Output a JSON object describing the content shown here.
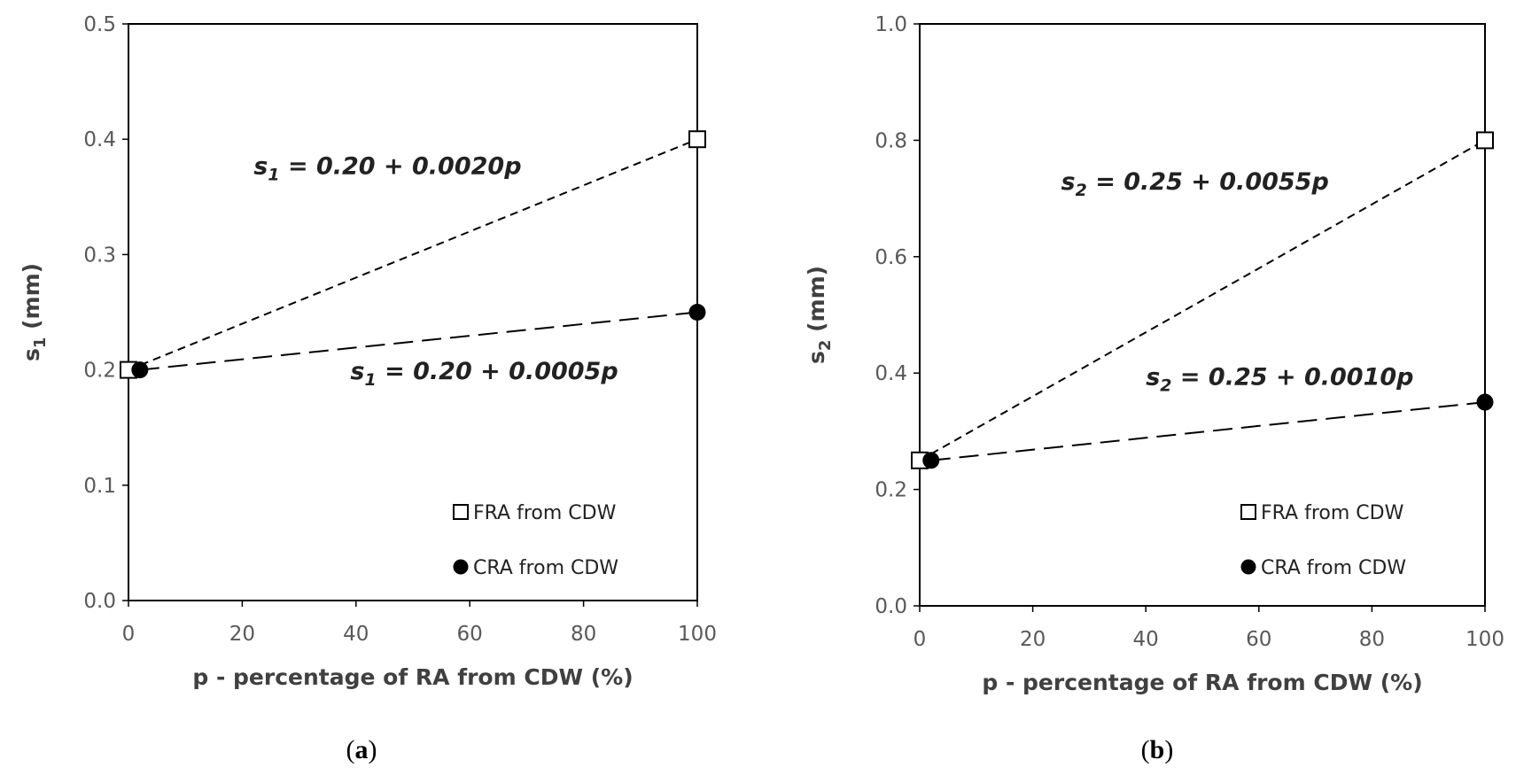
{
  "chart_data": [
    {
      "type": "line",
      "panel": "a",
      "caption_open": "(",
      "caption_letter": "a",
      "caption_close": ")",
      "xlabel": "p - percentage of RA from CDW (%)",
      "ylabel_main": "s",
      "ylabel_sub": "1",
      "ylabel_unit": " (mm)",
      "xlim": [
        0,
        100
      ],
      "ylim": [
        0.0,
        0.5
      ],
      "xticks": [
        0,
        20,
        40,
        60,
        80,
        100
      ],
      "xtick_labels": [
        "0",
        "20",
        "40",
        "60",
        "80",
        "100"
      ],
      "yticks": [
        0.0,
        0.1,
        0.2,
        0.3,
        0.4,
        0.5
      ],
      "ytick_labels": [
        "0.0",
        "0.1",
        "0.2",
        "0.3",
        "0.4",
        "0.5"
      ],
      "series": [
        {
          "name": "FRA from CDW",
          "marker": "open-square",
          "line": "short-dash",
          "x": [
            0,
            100
          ],
          "y": [
            0.2,
            0.4
          ],
          "equation": {
            "lhs": "s",
            "sub": "1",
            "rhs": " =  0.20 + 0.0020p",
            "at": [
              22,
              0.37
            ]
          }
        },
        {
          "name": "CRA from CDW",
          "marker": "filled-circle",
          "line": "long-dash",
          "x": [
            2,
            100
          ],
          "y": [
            0.2,
            0.25
          ],
          "equation": {
            "lhs": "s",
            "sub": "1",
            "rhs": " = 0.20 + 0.0005p",
            "at": [
              39,
              0.192
            ]
          }
        }
      ],
      "legend": {
        "position": "bottom-right"
      }
    },
    {
      "type": "line",
      "panel": "b",
      "caption_open": "(",
      "caption_letter": "b",
      "caption_close": ")",
      "xlabel": "p - percentage of RA from CDW (%)",
      "ylabel_main": "s",
      "ylabel_sub": "2",
      "ylabel_unit": " (mm)",
      "xlim": [
        0,
        100
      ],
      "ylim": [
        0.0,
        1.0
      ],
      "xticks": [
        0,
        20,
        40,
        60,
        80,
        100
      ],
      "xtick_labels": [
        "0",
        "20",
        "40",
        "60",
        "80",
        "100"
      ],
      "yticks": [
        0.0,
        0.2,
        0.4,
        0.6,
        0.8,
        1.0
      ],
      "ytick_labels": [
        "0.0",
        "0.2",
        "0.4",
        "0.6",
        "0.8",
        "1.0"
      ],
      "series": [
        {
          "name": "FRA from CDW",
          "marker": "open-square",
          "line": "short-dash",
          "x": [
            0,
            100
          ],
          "y": [
            0.25,
            0.8
          ],
          "equation": {
            "lhs": "s",
            "sub": "2",
            "rhs": " = 0.25 + 0.0055p",
            "at": [
              25,
              0.715
            ]
          }
        },
        {
          "name": "CRA from CDW",
          "marker": "filled-circle",
          "line": "long-dash",
          "x": [
            2,
            100
          ],
          "y": [
            0.25,
            0.35
          ],
          "equation": {
            "lhs": "s",
            "sub": "2",
            "rhs": " = 0.25 + 0.0010p",
            "at": [
              40,
              0.38
            ]
          }
        }
      ],
      "legend": {
        "position": "bottom-right"
      }
    }
  ]
}
